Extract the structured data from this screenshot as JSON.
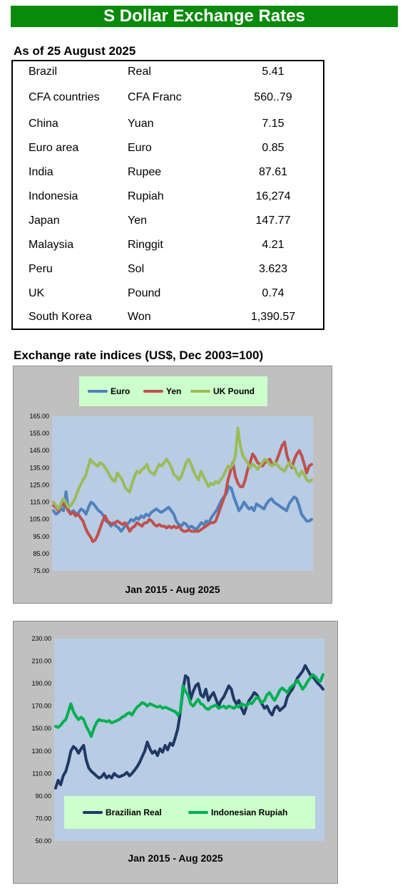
{
  "banner": {
    "title": "S Dollar Exchange Rates"
  },
  "rates": {
    "heading": "As of 25 August 2025",
    "rows": [
      {
        "country": "Brazil",
        "currency": "Real",
        "value": "5.41"
      },
      {
        "country": "CFA countries",
        "currency": "CFA Franc",
        "value": "560..79"
      },
      {
        "country": "China",
        "currency": "Yuan",
        "value": "7.15"
      },
      {
        "country": "Euro area",
        "currency": "Euro",
        "value": "0.85"
      },
      {
        "country": "India",
        "currency": "Rupee",
        "value": "87.61"
      },
      {
        "country": "Indonesia",
        "currency": "Rupiah",
        "value": "16,274"
      },
      {
        "country": "Japan",
        "currency": "Yen",
        "value": "147.77"
      },
      {
        "country": "Malaysia",
        "currency": "Ringgit",
        "value": "4.21"
      },
      {
        "country": "Peru",
        "currency": "Sol",
        "value": "3.623"
      },
      {
        "country": "UK",
        "currency": "Pound",
        "value": "0.74"
      },
      {
        "country": "South Korea",
        "currency": "Won",
        "value": "1,390.57"
      }
    ]
  },
  "indices": {
    "heading": "Exchange rate indices (US$, Dec 2003=100)"
  },
  "chart_data": [
    {
      "type": "line",
      "xlabel": "Jan 2015 - Aug 2025",
      "ylim": [
        75,
        165
      ],
      "yticks": [
        "165.00",
        "155.00",
        "145.00",
        "135.00",
        "125.00",
        "115.00",
        "105.00",
        "95.00",
        "85.00",
        "75.00"
      ],
      "grid": false,
      "background": "#b8cce4",
      "legend_position": "top",
      "series": [
        {
          "name": "Euro",
          "color": "#4f81bd",
          "values": [
            110,
            108,
            109,
            111,
            110,
            121,
            110,
            109,
            110,
            108,
            109,
            111,
            110,
            108,
            112,
            115,
            114,
            112,
            110,
            109,
            107,
            104,
            103,
            101,
            103,
            101,
            100,
            98,
            100,
            102,
            103,
            105,
            104,
            106,
            105,
            107,
            106,
            108,
            107,
            109,
            110,
            111,
            110,
            109,
            110,
            111,
            112,
            110,
            108,
            104,
            102,
            101,
            103,
            102,
            100,
            101,
            100,
            99,
            101,
            103,
            102,
            104,
            103,
            106,
            108,
            110,
            113,
            116,
            118,
            120,
            124,
            123,
            118,
            114,
            110,
            112,
            115,
            113,
            111,
            112,
            110,
            114,
            113,
            112,
            111,
            114,
            116,
            117,
            115,
            114,
            113,
            112,
            111,
            110,
            114,
            116,
            118,
            117,
            113,
            108,
            106,
            104,
            104,
            105
          ]
        },
        {
          "name": "Yen",
          "color": "#c0504d",
          "values": [
            113,
            112,
            110,
            113,
            114,
            113,
            110,
            108,
            109,
            107,
            108,
            106,
            104,
            100,
            97,
            95,
            92,
            93,
            96,
            100,
            104,
            107,
            104,
            103,
            102,
            103,
            104,
            103,
            102,
            103,
            101,
            98,
            100,
            101,
            103,
            102,
            101,
            103,
            103,
            105,
            104,
            102,
            101,
            102,
            101,
            101,
            100,
            101,
            100,
            101,
            100,
            101,
            99,
            98,
            98,
            99,
            98,
            98,
            98,
            98,
            99,
            100,
            101,
            102,
            103,
            103,
            104,
            108,
            112,
            116,
            120,
            128,
            133,
            138,
            130,
            126,
            124,
            124,
            128,
            134,
            138,
            143,
            141,
            138,
            137,
            136,
            138,
            139,
            140,
            137,
            137,
            140,
            144,
            148,
            150,
            142,
            138,
            135,
            140,
            143,
            145,
            142,
            137,
            132,
            136,
            137
          ]
        },
        {
          "name": "UK Pound",
          "color": "#9bbb59",
          "values": [
            115,
            113,
            111,
            114,
            117,
            115,
            112,
            113,
            115,
            118,
            122,
            125,
            128,
            130,
            135,
            140,
            138,
            137,
            136,
            138,
            137,
            135,
            133,
            130,
            128,
            127,
            132,
            130,
            128,
            124,
            122,
            121,
            126,
            130,
            133,
            132,
            134,
            135,
            137,
            133,
            132,
            131,
            134,
            137,
            136,
            138,
            140,
            138,
            135,
            131,
            130,
            128,
            130,
            134,
            138,
            140,
            137,
            133,
            130,
            128,
            133,
            130,
            127,
            124,
            126,
            125,
            127,
            126,
            128,
            130,
            133,
            136,
            135,
            137,
            142,
            158,
            148,
            142,
            140,
            138,
            135,
            137,
            136,
            134,
            136,
            138,
            140,
            139,
            137,
            136,
            138,
            137,
            135,
            134,
            133,
            136,
            138,
            136,
            135,
            132,
            130,
            133,
            131,
            128,
            127,
            128
          ]
        }
      ]
    },
    {
      "type": "line",
      "xlabel": "Jan 2015 -  Aug 2025",
      "ylim": [
        50,
        230
      ],
      "yticks": [
        "230.00",
        "210.00",
        "190.00",
        "170.00",
        "150.00",
        "130.00",
        "110.00",
        "90.00",
        "70.00",
        "50.00"
      ],
      "grid": false,
      "background": "#b8cce4",
      "legend_position": "bottom",
      "series": [
        {
          "name": "Brazilian Real",
          "color": "#1f3864",
          "values": [
            97,
            104,
            100,
            108,
            112,
            120,
            130,
            134,
            132,
            128,
            132,
            135,
            122,
            115,
            112,
            110,
            108,
            106,
            107,
            110,
            106,
            108,
            106,
            110,
            108,
            107,
            108,
            109,
            111,
            108,
            110,
            113,
            116,
            120,
            125,
            130,
            138,
            132,
            128,
            130,
            126,
            132,
            129,
            135,
            131,
            137,
            135,
            142,
            150,
            165,
            185,
            197,
            195,
            176,
            183,
            188,
            190,
            180,
            178,
            185,
            175,
            179,
            182,
            176,
            170,
            175,
            178,
            183,
            188,
            185,
            176,
            172,
            175,
            168,
            163,
            170,
            175,
            178,
            182,
            180,
            176,
            172,
            168,
            170,
            165,
            162,
            168,
            170,
            166,
            168,
            170,
            178,
            182,
            185,
            190,
            195,
            198,
            201,
            206,
            202,
            198,
            196,
            193,
            190,
            188,
            185
          ]
        },
        {
          "name": "Indonesian Rupiah",
          "color": "#00b050",
          "values": [
            152,
            151,
            153,
            156,
            158,
            165,
            172,
            165,
            161,
            158,
            160,
            158,
            152,
            148,
            143,
            150,
            155,
            158,
            157,
            157,
            156,
            157,
            155,
            156,
            157,
            158,
            160,
            161,
            163,
            164,
            162,
            166,
            169,
            171,
            173,
            172,
            170,
            172,
            171,
            170,
            169,
            170,
            168,
            169,
            168,
            167,
            166,
            165,
            162,
            165,
            188,
            183,
            180,
            172,
            170,
            173,
            176,
            172,
            171,
            168,
            167,
            169,
            170,
            171,
            168,
            169,
            170,
            168,
            170,
            169,
            168,
            170,
            169,
            172,
            171,
            170,
            173,
            172,
            175,
            178,
            176,
            173,
            175,
            180,
            182,
            178,
            175,
            179,
            184,
            186,
            184,
            182,
            186,
            188,
            190,
            193,
            189,
            185,
            188,
            192,
            195,
            198,
            196,
            193,
            192,
            198
          ]
        }
      ]
    }
  ]
}
